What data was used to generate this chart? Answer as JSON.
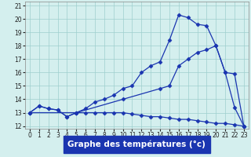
{
  "xlabel": "Graphe des températures (°c)",
  "xlim": [
    -0.5,
    23.5
  ],
  "ylim": [
    11.8,
    21.3
  ],
  "yticks": [
    12,
    13,
    14,
    15,
    16,
    17,
    18,
    19,
    20,
    21
  ],
  "xticks": [
    0,
    1,
    2,
    3,
    4,
    5,
    6,
    7,
    8,
    9,
    10,
    11,
    12,
    13,
    14,
    15,
    16,
    17,
    18,
    19,
    20,
    21,
    22,
    23
  ],
  "bg_color": "#d4efee",
  "grid_color": "#9ecfce",
  "line_color": "#1a35b0",
  "line1_x": [
    0,
    1,
    2,
    3,
    4,
    5,
    6,
    7,
    8,
    9,
    10,
    11,
    12,
    13,
    14,
    15,
    16,
    17,
    18,
    19,
    20,
    21,
    22,
    23
  ],
  "line1_y": [
    13.0,
    13.5,
    13.3,
    13.2,
    12.7,
    13.0,
    13.0,
    13.0,
    13.0,
    13.0,
    13.0,
    12.9,
    12.8,
    12.7,
    12.7,
    12.6,
    12.5,
    12.5,
    12.4,
    12.3,
    12.2,
    12.2,
    12.1,
    12.0
  ],
  "line2_x": [
    0,
    1,
    2,
    3,
    4,
    5,
    6,
    7,
    8,
    9,
    10,
    11,
    12,
    13,
    14,
    15,
    16,
    17,
    18,
    19,
    20,
    21,
    22,
    23
  ],
  "line2_y": [
    13.0,
    13.5,
    13.3,
    13.2,
    12.7,
    13.0,
    13.3,
    13.8,
    14.0,
    14.3,
    14.8,
    15.0,
    16.0,
    16.5,
    16.8,
    18.4,
    20.3,
    20.1,
    19.6,
    19.5,
    18.0,
    16.0,
    13.4,
    12.0
  ],
  "line3_x": [
    0,
    5,
    10,
    14,
    15,
    16,
    17,
    18,
    19,
    20,
    21,
    22,
    23
  ],
  "line3_y": [
    13.0,
    13.0,
    14.0,
    14.8,
    15.0,
    16.5,
    17.0,
    17.5,
    17.7,
    18.0,
    16.0,
    15.9,
    12.0
  ],
  "marker": "D",
  "marker_size": 2.5,
  "line_width": 0.9,
  "tick_fontsize": 5.5,
  "xlabel_fontsize": 7.5
}
